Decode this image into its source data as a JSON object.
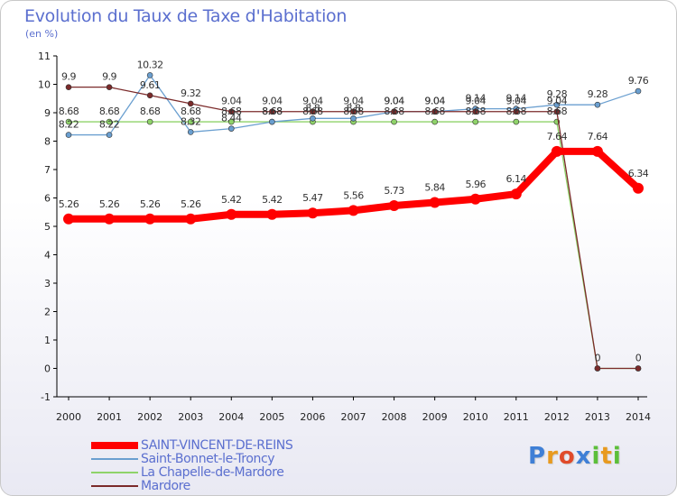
{
  "chart_data": {
    "type": "line",
    "title": "Evolution du Taux de Taxe d'Habitation",
    "subtitle": "(en %)",
    "xlabel": "",
    "ylabel": "",
    "ylim": [
      -1,
      11
    ],
    "grid": false,
    "legend_position": "bottom-left",
    "x": [
      "2000",
      "2001",
      "2002",
      "2003",
      "2004",
      "2005",
      "2006",
      "2007",
      "2008",
      "2009",
      "2010",
      "2011",
      "2012",
      "2013",
      "2014"
    ],
    "y_ticks": [
      "-1",
      "0",
      "1",
      "2",
      "3",
      "4",
      "5",
      "6",
      "7",
      "8",
      "9",
      "10",
      "11"
    ],
    "series": [
      {
        "name": "SAINT-VINCENT-DE-REINS",
        "color": "#ff0000",
        "values": [
          5.26,
          5.26,
          5.26,
          5.26,
          5.42,
          5.42,
          5.47,
          5.56,
          5.73,
          5.84,
          5.96,
          6.14,
          7.64,
          7.64,
          6.34
        ],
        "labels": [
          "5.26",
          "5.26",
          "5.26",
          "5.26",
          "5.42",
          "5.42",
          "5.47",
          "5.56",
          "5.73",
          "5.84",
          "5.96",
          "6.14",
          "7.64",
          "7.64",
          "6.34"
        ]
      },
      {
        "name": "Saint-Bonnet-le-Troncy",
        "color": "#6a9fd0",
        "values": [
          8.22,
          8.22,
          10.32,
          8.32,
          8.44,
          8.68,
          8.8,
          8.8,
          9.04,
          9.04,
          9.14,
          9.14,
          9.28,
          9.28,
          9.76
        ],
        "labels": [
          "8.22",
          "8.22",
          "10.32",
          "8.32",
          "8.44",
          "8.68",
          "8.8",
          "8.8",
          "9.04",
          "9.04",
          "9.14",
          "9.14",
          "9.28",
          "9.28",
          "9.76"
        ]
      },
      {
        "name": "La Chapelle-de-Mardore",
        "color": "#8fd36a",
        "values": [
          8.68,
          8.68,
          8.68,
          8.68,
          8.68,
          8.68,
          8.68,
          8.68,
          8.68,
          8.68,
          8.68,
          8.68,
          8.68,
          0,
          0
        ],
        "labels": [
          "8.68",
          "8.68",
          "8.68",
          "8.68",
          "8.68",
          "8.68",
          "8.68",
          "8.68",
          "8.68",
          "8.68",
          "8.68",
          "8.68",
          "8.68",
          "",
          ""
        ]
      },
      {
        "name": "Mardore",
        "color": "#7b2a2a",
        "values": [
          9.9,
          9.9,
          9.61,
          9.32,
          9.04,
          9.04,
          9.04,
          9.04,
          9.04,
          9.04,
          9.04,
          9.04,
          9.04,
          0,
          0
        ],
        "labels": [
          "9.9",
          "9.9",
          "9.61",
          "9.32",
          "9.04",
          "9.04",
          "9.04",
          "9.04",
          "9.04",
          "9.04",
          "9.04",
          "9.04",
          "9.04",
          "0",
          "0"
        ]
      }
    ]
  },
  "logo": {
    "letters": [
      "P",
      "r",
      "o",
      "x",
      "i",
      "t",
      "i"
    ],
    "colors": [
      "#3f7fd6",
      "#e89a1f",
      "#e04a2a",
      "#3f7fd6",
      "#5cbf3a",
      "#e89a1f",
      "#5cbf3a"
    ]
  }
}
